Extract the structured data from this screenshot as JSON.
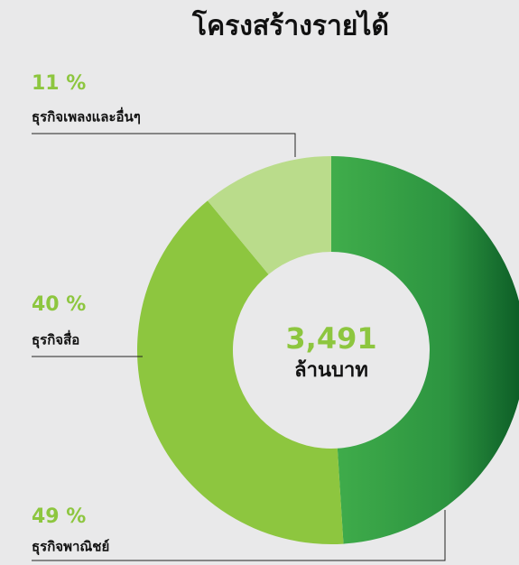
{
  "chart_data": {
    "type": "donut",
    "title": "โครงสร้างรายได้",
    "categories": [
      "ธุรกิจพาณิชย์",
      "ธุรกิจสื่อ",
      "ธุรกิจเพลงและอื่นๆ"
    ],
    "values": [
      49,
      40,
      11
    ],
    "value_labels": [
      "49 %",
      "40 %",
      "11 %"
    ],
    "colors": [
      "#2f9a44",
      "#8dc63f",
      "#badc8b"
    ],
    "total": {
      "value": 3491,
      "label": "3,491"
    },
    "total_unit": "ล้านบาท"
  }
}
